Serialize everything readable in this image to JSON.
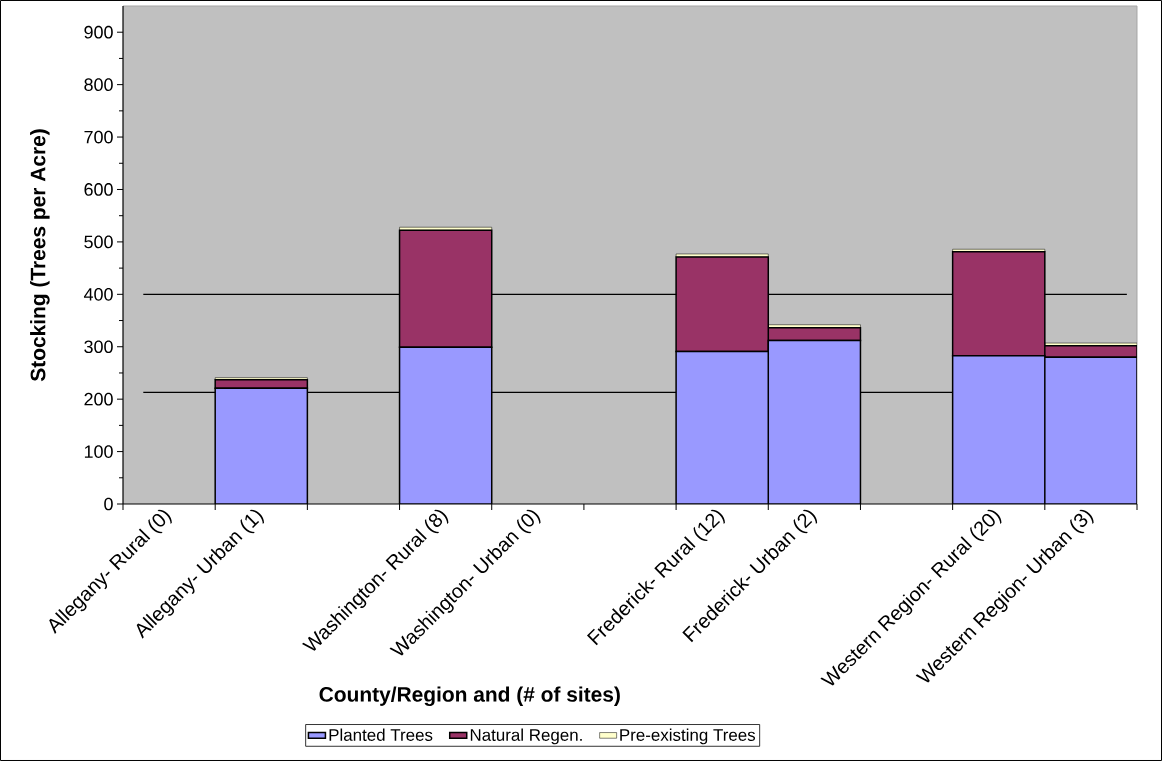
{
  "chart_data": {
    "type": "bar",
    "stacked": true,
    "xlabel": "County/Region and (# of sites)",
    "ylabel": "Stocking (Trees per Acre)",
    "categories": [
      "Allegany- Rural  (0)",
      "Allegany- Urban  (1)",
      null,
      "Washington- Rural  (8)",
      "Washington- Urban  (0)",
      null,
      "Frederick- Rural  (12)",
      "Frederick- Urban  (2)",
      null,
      "Western Region- Rural  (20)",
      "Western Region- Urban  (3)"
    ],
    "series": [
      {
        "name": "Planted Trees",
        "color": "#9999ff",
        "values": [
          null,
          221,
          null,
          299,
          null,
          null,
          291,
          312,
          null,
          283,
          280
        ]
      },
      {
        "name": "Natural Regen.",
        "color": "#993366",
        "values": [
          null,
          16,
          null,
          223,
          null,
          null,
          180,
          24,
          null,
          198,
          22
        ]
      },
      {
        "name": "Pre-existing Trees",
        "color": "#ffffcc",
        "values": [
          null,
          4,
          null,
          6,
          null,
          null,
          6,
          6,
          null,
          5,
          5
        ]
      }
    ],
    "ylim": [
      0,
      950
    ],
    "yticks": [
      0,
      100,
      200,
      300,
      400,
      500,
      600,
      700,
      800,
      900
    ],
    "ref_lines": [
      {
        "axis": "y",
        "value": 400,
        "color": "#000000"
      },
      {
        "axis": "y",
        "value": 213,
        "color": "#000000"
      }
    ],
    "legend": "bottom"
  }
}
